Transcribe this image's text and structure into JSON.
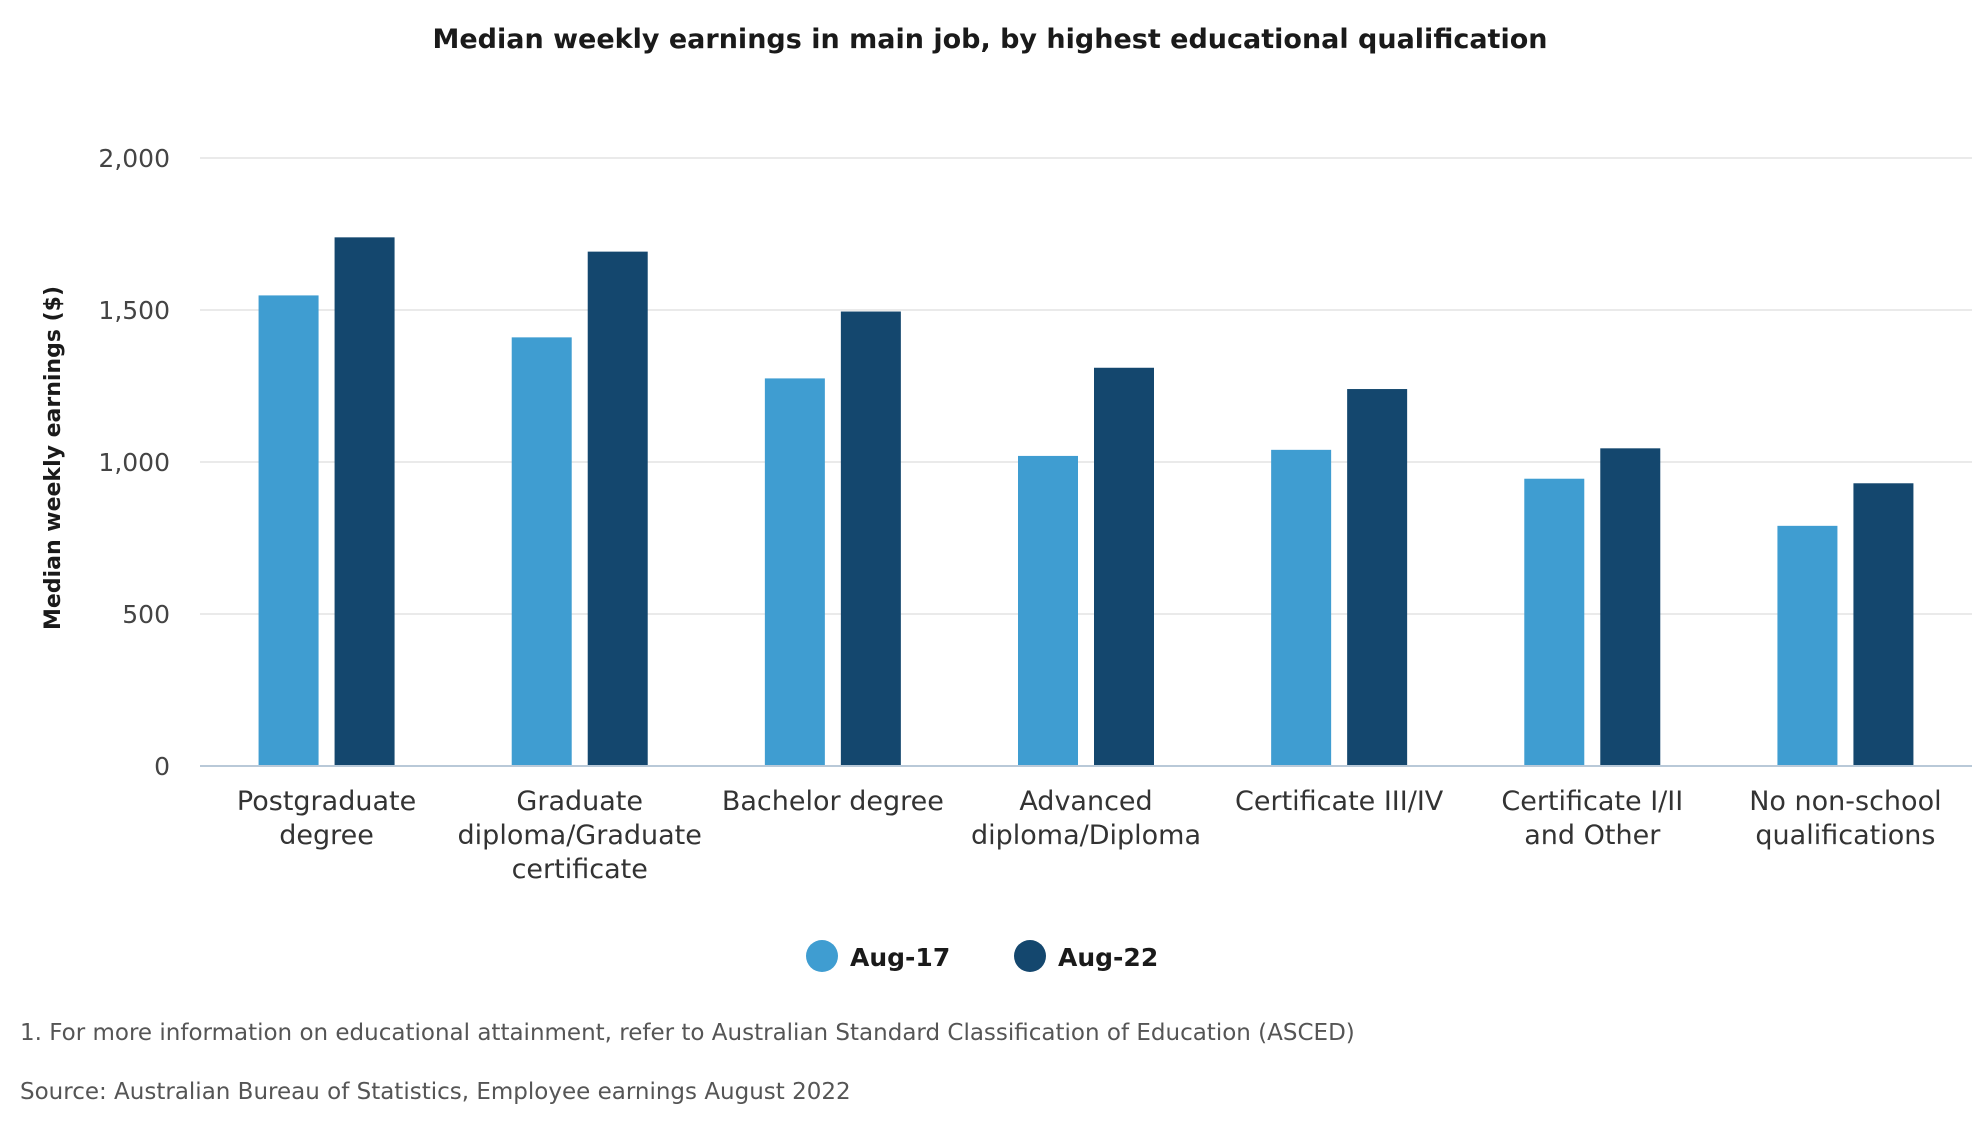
{
  "chart_data": {
    "type": "bar",
    "title": "Median weekly earnings in main job, by highest educational qualification",
    "xlabel": "",
    "ylabel": "Median weekly earnings ($)",
    "ylim": [
      0,
      2000
    ],
    "yticks": [
      0,
      500,
      1000,
      1500,
      2000
    ],
    "ytick_labels": [
      "0",
      "500",
      "1,000",
      "1,500",
      "2,000"
    ],
    "grid": true,
    "legend_position": "bottom-center",
    "categories": [
      [
        "Postgraduate",
        "degree"
      ],
      [
        "Graduate",
        "diploma/Graduate",
        "certificate"
      ],
      [
        "Bachelor degree"
      ],
      [
        "Advanced",
        "diploma/Diploma"
      ],
      [
        "Certificate III/IV"
      ],
      [
        "Certificate I/II",
        "and Other"
      ],
      [
        "No non-school",
        "qualifications"
      ]
    ],
    "series": [
      {
        "name": "Aug-17",
        "color": "#3f9dd1",
        "values": [
          1548,
          1410,
          1275,
          1020,
          1040,
          945,
          790
        ]
      },
      {
        "name": "Aug-22",
        "color": "#14476e",
        "values": [
          1739,
          1692,
          1495,
          1310,
          1240,
          1045,
          930
        ]
      }
    ],
    "notes": [
      "1. For more information on educational attainment, refer to Australian Standard Classification of Education (ASCED)",
      "Source: Australian Bureau of Statistics, Employee earnings August 2022"
    ]
  },
  "colors": {
    "grid": "#e3e3e3",
    "axis": "#b9c9d8"
  }
}
